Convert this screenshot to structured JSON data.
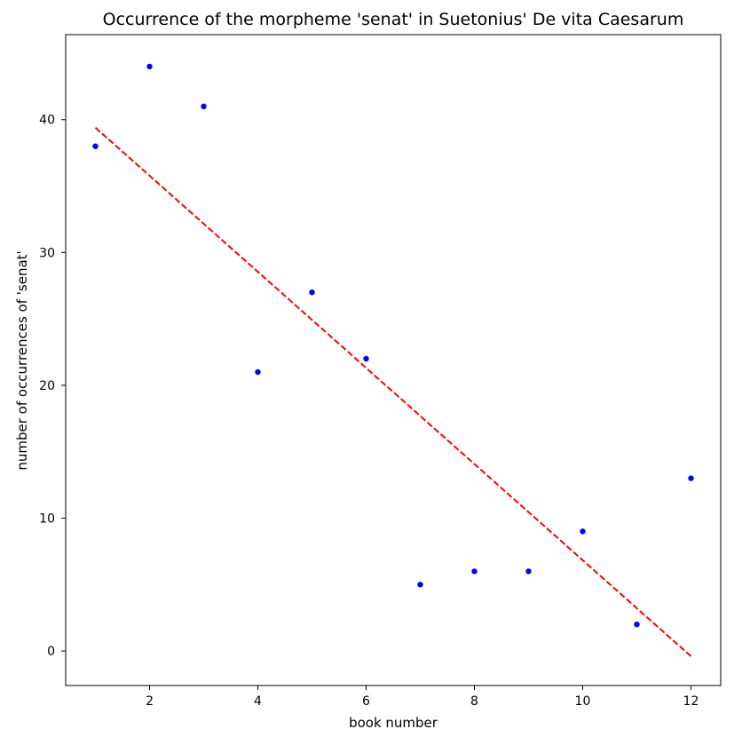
{
  "chart_data": {
    "type": "scatter",
    "title": "Occurrence of the morpheme 'senat' in Suetonius' De vita Caesarum",
    "xlabel": "book number",
    "ylabel": "number of occurrences of 'senat'",
    "xlim": [
      0.45,
      12.55
    ],
    "ylim": [
      -2.6,
      46.4
    ],
    "xticks": [
      2,
      4,
      6,
      8,
      10,
      12
    ],
    "yticks": [
      0,
      10,
      20,
      30,
      40
    ],
    "grid": false,
    "series": [
      {
        "type": "scatter",
        "color": "#0000ff",
        "x": [
          1,
          2,
          3,
          4,
          5,
          6,
          7,
          8,
          9,
          10,
          11,
          12
        ],
        "y": [
          38,
          44,
          41,
          21,
          27,
          22,
          5,
          6,
          6,
          9,
          2,
          13
        ]
      },
      {
        "type": "line",
        "style": "dashed",
        "color": "#ff0000",
        "x": [
          1,
          12
        ],
        "y": [
          39.4,
          -0.4
        ]
      }
    ]
  }
}
